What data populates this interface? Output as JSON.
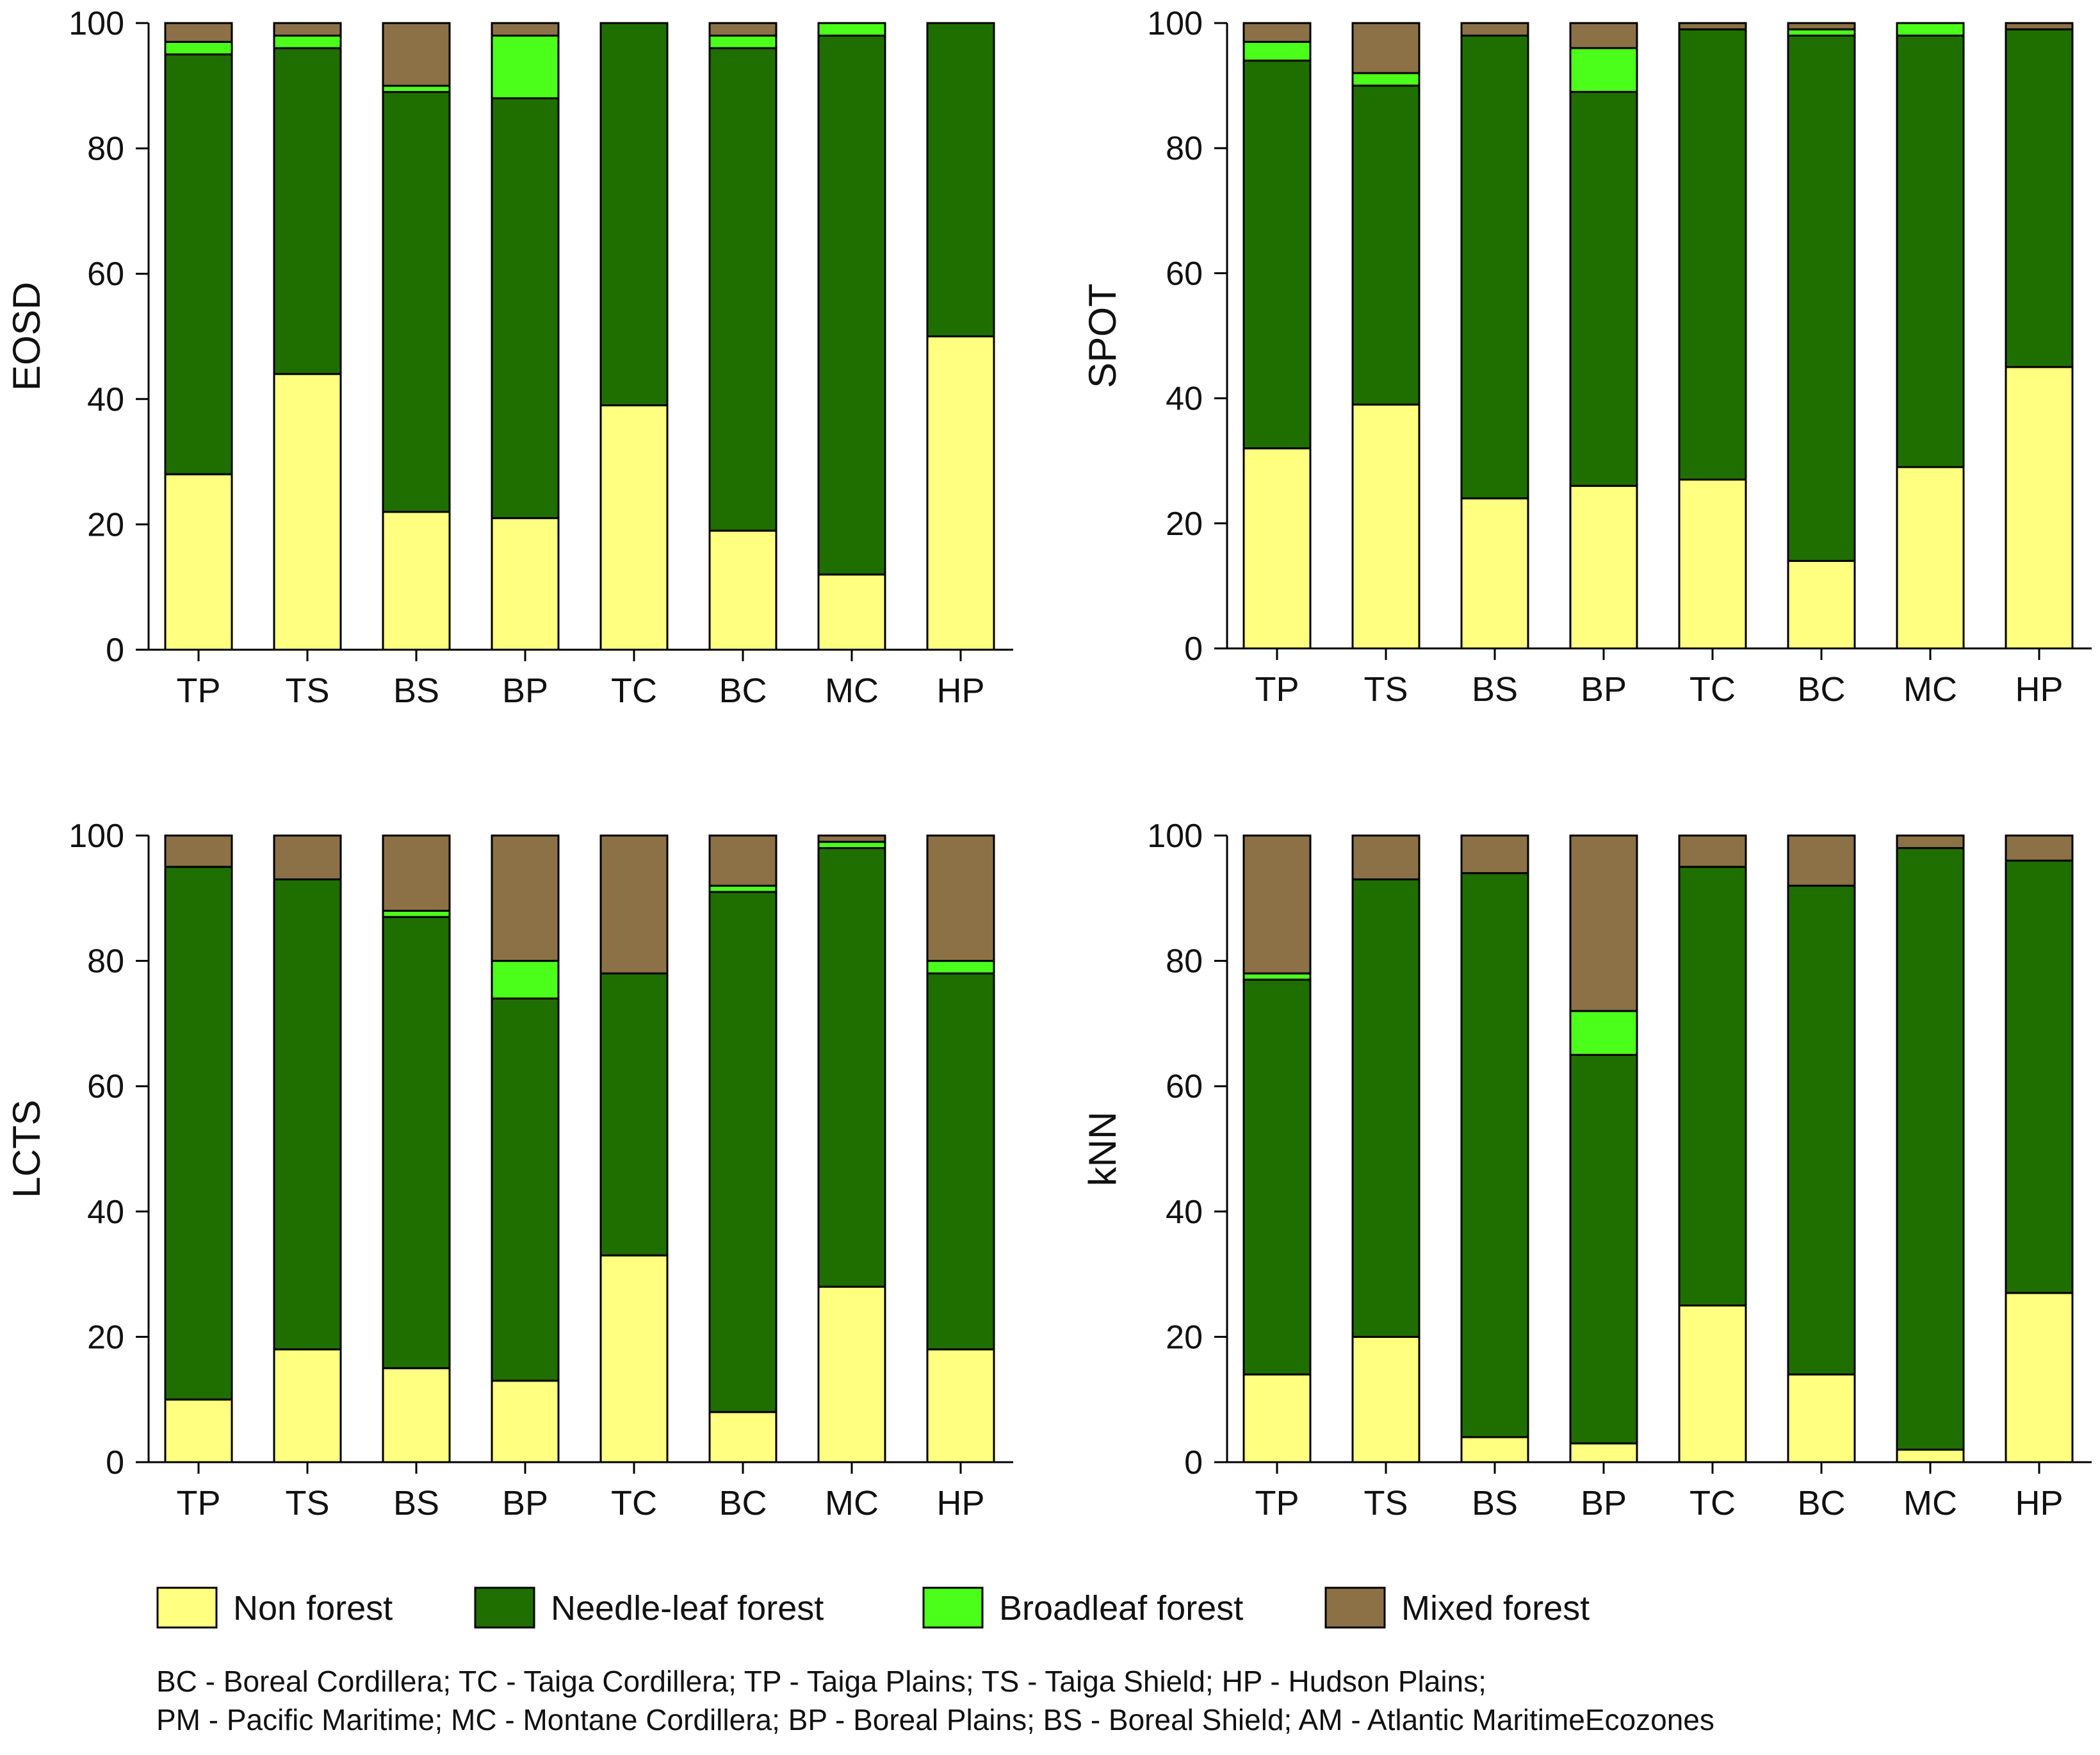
{
  "figure": {
    "abbreviations": [
      "BC - Boreal Cordillera; TC - Taiga Cordillera; TP - Taiga Plains; TS - Taiga Shield; HP - Hudson Plains;",
      "PM - Pacific Maritime; MC - Montane Cordillera; BP - Boreal Plains; BS - Boreal Shield; AM - Atlantic MaritimeEcozones"
    ]
  },
  "legend": [
    {
      "label": "Non forest",
      "color": "#ffff80"
    },
    {
      "label": "Needle-leaf forest",
      "color": "#1f6f00"
    },
    {
      "label": "Broadleaf forest",
      "color": "#4cff1a"
    },
    {
      "label": "Mixed forest",
      "color": "#8b7145"
    }
  ],
  "chart_data": [
    {
      "type": "bar",
      "stacked": true,
      "ylabel": "EOSD",
      "ylim": [
        0,
        100
      ],
      "yticks": [
        "0",
        "20",
        "40",
        "60",
        "80",
        "100"
      ],
      "categories": [
        "TP",
        "TS",
        "BS",
        "BP",
        "TC",
        "BC",
        "MC",
        "HP"
      ],
      "series": [
        {
          "name": "Non forest",
          "values": [
            28,
            44,
            22,
            21,
            39,
            19,
            12,
            50
          ]
        },
        {
          "name": "Needle-leaf forest",
          "values": [
            67,
            52,
            67,
            67,
            61,
            77,
            86,
            50
          ]
        },
        {
          "name": "Broadleaf forest",
          "values": [
            2,
            2,
            1,
            10,
            0,
            2,
            2,
            0
          ]
        },
        {
          "name": "Mixed forest",
          "values": [
            3,
            2,
            10,
            2,
            0,
            2,
            0,
            0
          ]
        }
      ]
    },
    {
      "type": "bar",
      "stacked": true,
      "ylabel": "SPOT",
      "ylim": [
        0,
        100
      ],
      "yticks": [
        "0",
        "20",
        "40",
        "60",
        "80",
        "100"
      ],
      "categories": [
        "TP",
        "TS",
        "BS",
        "BP",
        "TC",
        "BC",
        "MC",
        "HP"
      ],
      "series": [
        {
          "name": "Non forest",
          "values": [
            32,
            39,
            24,
            26,
            27,
            14,
            29,
            45
          ]
        },
        {
          "name": "Needle-leaf forest",
          "values": [
            62,
            51,
            74,
            63,
            72,
            84,
            69,
            54
          ]
        },
        {
          "name": "Broadleaf forest",
          "values": [
            3,
            2,
            0,
            7,
            0,
            1,
            2,
            0
          ]
        },
        {
          "name": "Mixed forest",
          "values": [
            3,
            8,
            2,
            4,
            1,
            1,
            0,
            1
          ]
        }
      ]
    },
    {
      "type": "bar",
      "stacked": true,
      "ylabel": "LCTS",
      "ylim": [
        0,
        100
      ],
      "yticks": [
        "0",
        "20",
        "40",
        "60",
        "80",
        "100"
      ],
      "categories": [
        "TP",
        "TS",
        "BS",
        "BP",
        "TC",
        "BC",
        "MC",
        "HP"
      ],
      "series": [
        {
          "name": "Non forest",
          "values": [
            10,
            18,
            15,
            13,
            33,
            8,
            28,
            18
          ]
        },
        {
          "name": "Needle-leaf forest",
          "values": [
            85,
            75,
            72,
            61,
            45,
            83,
            70,
            60
          ]
        },
        {
          "name": "Broadleaf forest",
          "values": [
            0,
            0,
            1,
            6,
            0,
            1,
            1,
            2
          ]
        },
        {
          "name": "Mixed forest",
          "values": [
            5,
            7,
            12,
            20,
            22,
            8,
            1,
            20
          ]
        }
      ]
    },
    {
      "type": "bar",
      "stacked": true,
      "ylabel": "kNN",
      "ylim": [
        0,
        100
      ],
      "yticks": [
        "0",
        "20",
        "40",
        "60",
        "80",
        "100"
      ],
      "categories": [
        "TP",
        "TS",
        "BS",
        "BP",
        "TC",
        "BC",
        "MC",
        "HP"
      ],
      "series": [
        {
          "name": "Non forest",
          "values": [
            14,
            20,
            4,
            3,
            25,
            14,
            2,
            27
          ]
        },
        {
          "name": "Needle-leaf forest",
          "values": [
            63,
            73,
            90,
            62,
            70,
            78,
            96,
            69
          ]
        },
        {
          "name": "Broadleaf forest",
          "values": [
            1,
            0,
            0,
            7,
            0,
            0,
            0,
            0
          ]
        },
        {
          "name": "Mixed forest",
          "values": [
            22,
            7,
            6,
            28,
            5,
            8,
            2,
            4
          ]
        }
      ]
    }
  ]
}
